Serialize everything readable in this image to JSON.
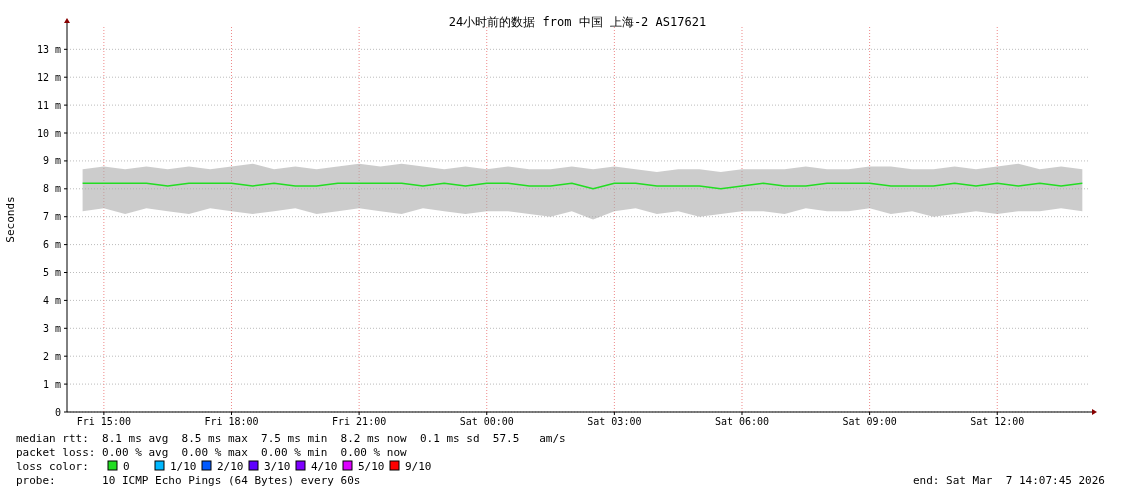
{
  "chart_data": {
    "type": "line",
    "title": "24小时前的数据 from 中国 上海-2 AS17621",
    "ylabel": "Seconds",
    "xlim": [
      "2026-03-06T14:08",
      "2026-03-07T14:08"
    ],
    "xticks": [
      {
        "value": "2026-03-06T15:00",
        "label": "Fri 15:00"
      },
      {
        "value": "2026-03-06T18:00",
        "label": "Fri 18:00"
      },
      {
        "value": "2026-03-06T21:00",
        "label": "Fri 21:00"
      },
      {
        "value": "2026-03-07T00:00",
        "label": "Sat 00:00"
      },
      {
        "value": "2026-03-07T03:00",
        "label": "Sat 03:00"
      },
      {
        "value": "2026-03-07T06:00",
        "label": "Sat 06:00"
      },
      {
        "value": "2026-03-07T09:00",
        "label": "Sat 09:00"
      },
      {
        "value": "2026-03-07T12:00",
        "label": "Sat 12:00"
      }
    ],
    "ylim": [
      0,
      13.8
    ],
    "yticks": [
      0,
      {
        "value": 1,
        "label": "1 m"
      },
      {
        "value": 2,
        "label": "2 m"
      },
      {
        "value": 3,
        "label": "3 m"
      },
      {
        "value": 4,
        "label": "4 m"
      },
      {
        "value": 5,
        "label": "5 m"
      },
      {
        "value": 6,
        "label": "6 m"
      },
      {
        "value": 7,
        "label": "7 m"
      },
      {
        "value": 8,
        "label": "8 m"
      },
      {
        "value": 9,
        "label": "9 m"
      },
      {
        "value": 10,
        "label": "10 m"
      },
      {
        "value": 11,
        "label": "11 m"
      },
      {
        "value": 12,
        "label": "12 m"
      },
      {
        "value": 13,
        "label": "13 m"
      }
    ],
    "x": [
      "2026-03-06T14:30",
      "2026-03-06T15:00",
      "2026-03-06T15:30",
      "2026-03-06T16:00",
      "2026-03-06T16:30",
      "2026-03-06T17:00",
      "2026-03-06T17:30",
      "2026-03-06T18:00",
      "2026-03-06T18:30",
      "2026-03-06T19:00",
      "2026-03-06T19:30",
      "2026-03-06T20:00",
      "2026-03-06T20:30",
      "2026-03-06T21:00",
      "2026-03-06T21:30",
      "2026-03-06T22:00",
      "2026-03-06T22:30",
      "2026-03-06T23:00",
      "2026-03-06T23:30",
      "2026-03-07T00:00",
      "2026-03-07T00:30",
      "2026-03-07T01:00",
      "2026-03-07T01:30",
      "2026-03-07T02:00",
      "2026-03-07T02:30",
      "2026-03-07T03:00",
      "2026-03-07T03:30",
      "2026-03-07T04:00",
      "2026-03-07T04:30",
      "2026-03-07T05:00",
      "2026-03-07T05:30",
      "2026-03-07T06:00",
      "2026-03-07T06:30",
      "2026-03-07T07:00",
      "2026-03-07T07:30",
      "2026-03-07T08:00",
      "2026-03-07T08:30",
      "2026-03-07T09:00",
      "2026-03-07T09:30",
      "2026-03-07T10:00",
      "2026-03-07T10:30",
      "2026-03-07T11:00",
      "2026-03-07T11:30",
      "2026-03-07T12:00",
      "2026-03-07T12:30",
      "2026-03-07T13:00",
      "2026-03-07T13:30",
      "2026-03-07T14:00"
    ],
    "series": [
      {
        "color": "#22dd22",
        "values": [
          8.2,
          8.2,
          8.2,
          8.2,
          8.1,
          8.2,
          8.2,
          8.2,
          8.1,
          8.2,
          8.1,
          8.1,
          8.2,
          8.2,
          8.2,
          8.2,
          8.1,
          8.2,
          8.1,
          8.2,
          8.2,
          8.1,
          8.1,
          8.2,
          8.0,
          8.2,
          8.2,
          8.1,
          8.1,
          8.1,
          8.0,
          8.1,
          8.2,
          8.1,
          8.1,
          8.2,
          8.2,
          8.2,
          8.1,
          8.1,
          8.1,
          8.2,
          8.1,
          8.2,
          8.1,
          8.2,
          8.1,
          8.2
        ],
        "lower": [
          7.2,
          7.3,
          7.1,
          7.3,
          7.2,
          7.1,
          7.3,
          7.2,
          7.1,
          7.2,
          7.3,
          7.1,
          7.2,
          7.3,
          7.2,
          7.1,
          7.3,
          7.2,
          7.1,
          7.2,
          7.2,
          7.1,
          7.0,
          7.2,
          6.9,
          7.2,
          7.3,
          7.1,
          7.2,
          7.0,
          7.1,
          7.2,
          7.2,
          7.1,
          7.3,
          7.2,
          7.2,
          7.3,
          7.1,
          7.2,
          7.0,
          7.1,
          7.2,
          7.1,
          7.2,
          7.2,
          7.3,
          7.2
        ],
        "upper": [
          8.7,
          8.8,
          8.7,
          8.8,
          8.7,
          8.8,
          8.7,
          8.8,
          8.9,
          8.7,
          8.8,
          8.7,
          8.8,
          8.9,
          8.8,
          8.9,
          8.8,
          8.7,
          8.8,
          8.7,
          8.8,
          8.7,
          8.7,
          8.8,
          8.7,
          8.8,
          8.7,
          8.6,
          8.7,
          8.7,
          8.6,
          8.7,
          8.7,
          8.7,
          8.8,
          8.7,
          8.7,
          8.8,
          8.8,
          8.7,
          8.7,
          8.8,
          8.7,
          8.8,
          8.9,
          8.7,
          8.8,
          8.7
        ]
      }
    ],
    "grid": true,
    "annotations": [
      "median rtt:  8.1 ms avg  8.5 ms max  7.5 ms min  8.2 ms now  0.1 ms sd  57.5   am/s",
      "packet loss: 0.00 % avg  0.00 % max  0.00 % min  0.00 % now",
      "loss color:",
      "0",
      "1/10",
      "2/10",
      "3/10",
      "4/10",
      "5/10",
      "9/10",
      "probe:       10 ICMP Echo Pings (64 Bytes) every 60s",
      "end: Sat Mar  7 14:07:45 2026"
    ]
  }
}
